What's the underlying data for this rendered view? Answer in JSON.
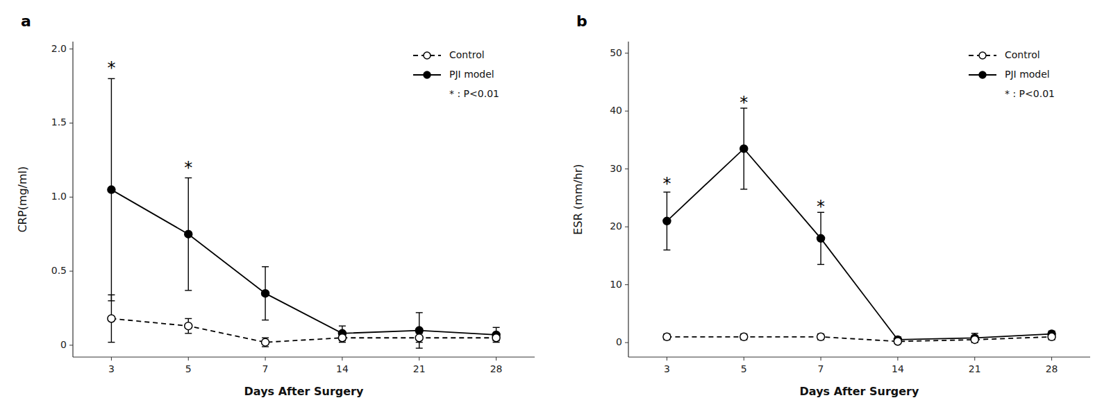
{
  "chart_data": [
    {
      "type": "line",
      "title": "a",
      "categories": [
        "3",
        "5",
        "7",
        "14",
        "21",
        "28"
      ],
      "x_label": "Days After Surgery",
      "y_label": "CRP(mg/ml)",
      "series": [
        {
          "name": "Control",
          "color": "black",
          "marker": "open-circle",
          "line_style": "dashed",
          "values": [
            0.18,
            0.13,
            0.02,
            0.05,
            0.05,
            0.05
          ],
          "errors": [
            0.16,
            0.05,
            0.03,
            0.03,
            0.03,
            0.02
          ]
        },
        {
          "name": "PJI model",
          "color": "black",
          "marker": "circle",
          "line_style": "solid",
          "values": [
            1.05,
            0.75,
            0.35,
            0.08,
            0.1,
            0.07
          ],
          "errors": [
            0.75,
            0.38,
            0.18,
            0.05,
            0.12,
            0.05
          ]
        }
      ],
      "ylim": [
        -0.08,
        2.05
      ],
      "yticks": [
        0,
        0.5,
        {
          "value": 1,
          "label": "1.0"
        },
        1.5,
        {
          "value": 2,
          "label": "2.0"
        }
      ],
      "annotations": [
        {
          "text": "*",
          "x": "3",
          "y": 1.87
        },
        {
          "text": "*",
          "x": "5",
          "y": 1.2
        }
      ],
      "legend": "upper right",
      "legend_note": "* : P<0.01",
      "grid": false
    },
    {
      "type": "line",
      "title": "b",
      "categories": [
        "3",
        "5",
        "7",
        "14",
        "21",
        "28"
      ],
      "x_label": "Days After Surgery",
      "y_label": "ESR (mm/hr)",
      "series": [
        {
          "name": "Control",
          "color": "black",
          "marker": "open-circle",
          "line_style": "dashed",
          "values": [
            1.0,
            1.0,
            1.0,
            0.2,
            0.5,
            1.0
          ],
          "errors": [
            0.5,
            0.5,
            0.5,
            0.3,
            0.3,
            0.5
          ]
        },
        {
          "name": "PJI model",
          "color": "black",
          "marker": "circle",
          "line_style": "solid",
          "values": [
            21.0,
            33.5,
            18.0,
            0.5,
            0.8,
            1.5
          ],
          "errors": [
            5.0,
            7.0,
            4.5,
            0.5,
            0.8,
            0.5
          ]
        }
      ],
      "ylim": [
        -2.5,
        52.0
      ],
      "yticks": [
        0,
        10,
        20,
        30,
        40,
        50
      ],
      "annotations": [
        {
          "text": "*",
          "x": "3",
          "y": 27.5
        },
        {
          "text": "*",
          "x": "5",
          "y": 41.5
        },
        {
          "text": "*",
          "x": "7",
          "y": 23.5
        }
      ],
      "legend": "upper right",
      "legend_note": "* : P<0.01",
      "grid": false
    }
  ]
}
